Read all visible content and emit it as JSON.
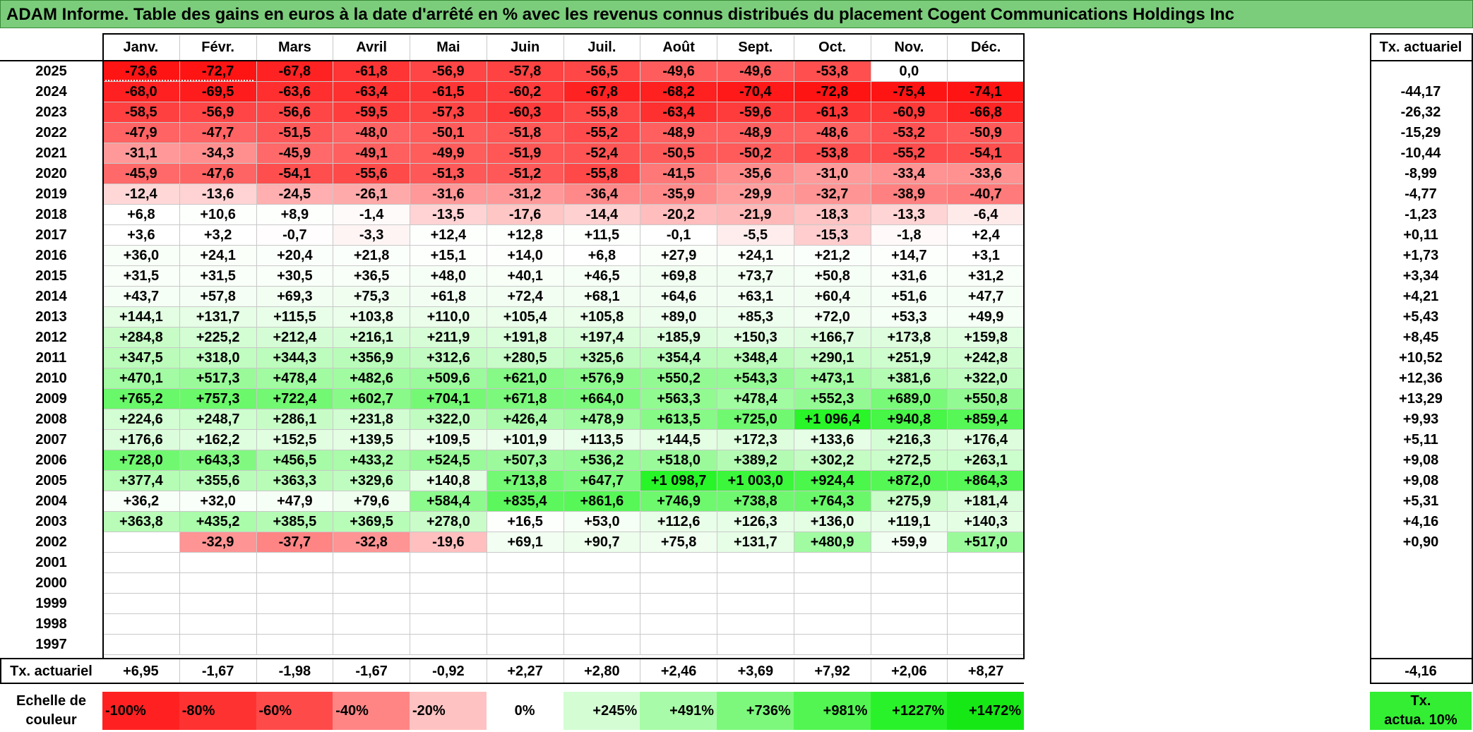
{
  "title": "ADAM Informe. Table des gains en euros à la date d'arrêté en % avec les revenus connus distribués du placement Cogent Communications Holdings Inc",
  "months": [
    "Janv.",
    "Févr.",
    "Mars",
    "Avril",
    "Mai",
    "Juin",
    "Juil.",
    "Août",
    "Sept.",
    "Oct.",
    "Nov.",
    "Déc."
  ],
  "tx_header": "Tx. actuariel",
  "rows": [
    {
      "year": "2025",
      "values": [
        "-73,6",
        "-72,7",
        "-67,8",
        "-61,8",
        "-56,9",
        "-57,8",
        "-56,5",
        "-49,6",
        "-49,6",
        "-53,8",
        "0,0",
        ""
      ],
      "tx": ""
    },
    {
      "year": "2024",
      "values": [
        "-68,0",
        "-69,5",
        "-63,6",
        "-63,4",
        "-61,5",
        "-60,2",
        "-67,8",
        "-68,2",
        "-70,4",
        "-72,8",
        "-75,4",
        "-74,1"
      ],
      "tx": "-44,17"
    },
    {
      "year": "2023",
      "values": [
        "-58,5",
        "-56,9",
        "-56,6",
        "-59,5",
        "-57,3",
        "-60,3",
        "-55,8",
        "-63,4",
        "-59,6",
        "-61,3",
        "-60,9",
        "-66,8"
      ],
      "tx": "-26,32"
    },
    {
      "year": "2022",
      "values": [
        "-47,9",
        "-47,7",
        "-51,5",
        "-48,0",
        "-50,1",
        "-51,8",
        "-55,2",
        "-48,9",
        "-48,9",
        "-48,6",
        "-53,2",
        "-50,9"
      ],
      "tx": "-15,29"
    },
    {
      "year": "2021",
      "values": [
        "-31,1",
        "-34,3",
        "-45,9",
        "-49,1",
        "-49,9",
        "-51,9",
        "-52,4",
        "-50,5",
        "-50,2",
        "-53,8",
        "-55,2",
        "-54,1"
      ],
      "tx": "-10,44"
    },
    {
      "year": "2020",
      "values": [
        "-45,9",
        "-47,6",
        "-54,1",
        "-55,6",
        "-51,3",
        "-51,2",
        "-55,8",
        "-41,5",
        "-35,6",
        "-31,0",
        "-33,4",
        "-33,6"
      ],
      "tx": "-8,99"
    },
    {
      "year": "2019",
      "values": [
        "-12,4",
        "-13,6",
        "-24,5",
        "-26,1",
        "-31,6",
        "-31,2",
        "-36,4",
        "-35,9",
        "-29,9",
        "-32,7",
        "-38,9",
        "-40,7"
      ],
      "tx": "-4,77"
    },
    {
      "year": "2018",
      "values": [
        "+6,8",
        "+10,6",
        "+8,9",
        "-1,4",
        "-13,5",
        "-17,6",
        "-14,4",
        "-20,2",
        "-21,9",
        "-18,3",
        "-13,3",
        "-6,4"
      ],
      "tx": "-1,23"
    },
    {
      "year": "2017",
      "values": [
        "+3,6",
        "+3,2",
        "-0,7",
        "-3,3",
        "+12,4",
        "+12,8",
        "+11,5",
        "-0,1",
        "-5,5",
        "-15,3",
        "-1,8",
        "+2,4"
      ],
      "tx": "+0,11"
    },
    {
      "year": "2016",
      "values": [
        "+36,0",
        "+24,1",
        "+20,4",
        "+21,8",
        "+15,1",
        "+14,0",
        "+6,8",
        "+27,9",
        "+24,1",
        "+21,2",
        "+14,7",
        "+3,1"
      ],
      "tx": "+1,73"
    },
    {
      "year": "2015",
      "values": [
        "+31,5",
        "+31,5",
        "+30,5",
        "+36,5",
        "+48,0",
        "+40,1",
        "+46,5",
        "+69,8",
        "+73,7",
        "+50,8",
        "+31,6",
        "+31,2"
      ],
      "tx": "+3,34"
    },
    {
      "year": "2014",
      "values": [
        "+43,7",
        "+57,8",
        "+69,3",
        "+75,3",
        "+61,8",
        "+72,4",
        "+68,1",
        "+64,6",
        "+63,1",
        "+60,4",
        "+51,6",
        "+47,7"
      ],
      "tx": "+4,21"
    },
    {
      "year": "2013",
      "values": [
        "+144,1",
        "+131,7",
        "+115,5",
        "+103,8",
        "+110,0",
        "+105,4",
        "+105,8",
        "+89,0",
        "+85,3",
        "+72,0",
        "+53,3",
        "+49,9"
      ],
      "tx": "+5,43"
    },
    {
      "year": "2012",
      "values": [
        "+284,8",
        "+225,2",
        "+212,4",
        "+216,1",
        "+211,9",
        "+191,8",
        "+197,4",
        "+185,9",
        "+150,3",
        "+166,7",
        "+173,8",
        "+159,8"
      ],
      "tx": "+8,45"
    },
    {
      "year": "2011",
      "values": [
        "+347,5",
        "+318,0",
        "+344,3",
        "+356,9",
        "+312,6",
        "+280,5",
        "+325,6",
        "+354,4",
        "+348,4",
        "+290,1",
        "+251,9",
        "+242,8"
      ],
      "tx": "+10,52"
    },
    {
      "year": "2010",
      "values": [
        "+470,1",
        "+517,3",
        "+478,4",
        "+482,6",
        "+509,6",
        "+621,0",
        "+576,9",
        "+550,2",
        "+543,3",
        "+473,1",
        "+381,6",
        "+322,0"
      ],
      "tx": "+12,36"
    },
    {
      "year": "2009",
      "values": [
        "+765,2",
        "+757,3",
        "+722,4",
        "+602,7",
        "+704,1",
        "+671,8",
        "+664,0",
        "+563,3",
        "+478,4",
        "+552,3",
        "+689,0",
        "+550,8"
      ],
      "tx": "+13,29"
    },
    {
      "year": "2008",
      "values": [
        "+224,6",
        "+248,7",
        "+286,1",
        "+231,8",
        "+322,0",
        "+426,4",
        "+478,9",
        "+613,5",
        "+725,0",
        "+1 096,4",
        "+940,8",
        "+859,4"
      ],
      "tx": "+9,93"
    },
    {
      "year": "2007",
      "values": [
        "+176,6",
        "+162,2",
        "+152,5",
        "+139,5",
        "+109,5",
        "+101,9",
        "+113,5",
        "+144,5",
        "+172,3",
        "+133,6",
        "+216,3",
        "+176,4"
      ],
      "tx": "+5,11"
    },
    {
      "year": "2006",
      "values": [
        "+728,0",
        "+643,3",
        "+456,5",
        "+433,2",
        "+524,5",
        "+507,3",
        "+536,2",
        "+518,0",
        "+389,2",
        "+302,2",
        "+272,5",
        "+263,1"
      ],
      "tx": "+9,08"
    },
    {
      "year": "2005",
      "values": [
        "+377,4",
        "+355,6",
        "+363,3",
        "+329,6",
        "+140,8",
        "+713,8",
        "+647,7",
        "+1 098,7",
        "+1 003,0",
        "+924,4",
        "+872,0",
        "+864,3"
      ],
      "tx": "+9,08"
    },
    {
      "year": "2004",
      "values": [
        "+36,2",
        "+32,0",
        "+47,9",
        "+79,6",
        "+584,4",
        "+835,4",
        "+861,6",
        "+746,9",
        "+738,8",
        "+764,3",
        "+275,9",
        "+181,4"
      ],
      "tx": "+5,31"
    },
    {
      "year": "2003",
      "values": [
        "+363,8",
        "+435,2",
        "+385,5",
        "+369,5",
        "+278,0",
        "+16,5",
        "+53,0",
        "+112,6",
        "+126,3",
        "+136,0",
        "+119,1",
        "+140,3"
      ],
      "tx": "+4,16"
    },
    {
      "year": "2002",
      "values": [
        "",
        "-32,9",
        "-37,7",
        "-32,8",
        "-19,6",
        "+69,1",
        "+90,7",
        "+75,8",
        "+131,7",
        "+480,9",
        "+59,9",
        "+517,0"
      ],
      "tx": "+0,90"
    },
    {
      "year": "2001",
      "values": [
        "",
        "",
        "",
        "",
        "",
        "",
        "",
        "",
        "",
        "",
        "",
        ""
      ],
      "tx": ""
    },
    {
      "year": "2000",
      "values": [
        "",
        "",
        "",
        "",
        "",
        "",
        "",
        "",
        "",
        "",
        "",
        ""
      ],
      "tx": ""
    },
    {
      "year": "1999",
      "values": [
        "",
        "",
        "",
        "",
        "",
        "",
        "",
        "",
        "",
        "",
        "",
        ""
      ],
      "tx": ""
    },
    {
      "year": "1998",
      "values": [
        "",
        "",
        "",
        "",
        "",
        "",
        "",
        "",
        "",
        "",
        "",
        ""
      ],
      "tx": ""
    },
    {
      "year": "1997",
      "values": [
        "",
        "",
        "",
        "",
        "",
        "",
        "",
        "",
        "",
        "",
        "",
        ""
      ],
      "tx": ""
    }
  ],
  "footer": {
    "label": "Tx. actuariel",
    "values": [
      "+6,95",
      "-1,67",
      "-1,98",
      "-1,67",
      "-0,92",
      "+2,27",
      "+2,80",
      "+2,46",
      "+3,69",
      "+7,92",
      "+2,06",
      "+8,27"
    ],
    "total": "-4,16"
  },
  "scale": {
    "label_line1": "Echelle de",
    "label_line2": "couleur",
    "items": [
      {
        "label": "-100%",
        "color": "#ff2121",
        "align": "left"
      },
      {
        "label": "-80%",
        "color": "#ff3232",
        "align": "left"
      },
      {
        "label": "-60%",
        "color": "#ff4a4a",
        "align": "left"
      },
      {
        "label": "-40%",
        "color": "#ff8585",
        "align": "left"
      },
      {
        "label": "-20%",
        "color": "#ffc2c2",
        "align": "left"
      },
      {
        "label": "0%",
        "color": "#ffffff",
        "align": "center"
      },
      {
        "label": "+245%",
        "color": "#d4fdd4",
        "align": "right"
      },
      {
        "label": "+491%",
        "color": "#a8fba8",
        "align": "right"
      },
      {
        "label": "+736%",
        "color": "#7df87d",
        "align": "right"
      },
      {
        "label": "+981%",
        "color": "#52f552",
        "align": "right"
      },
      {
        "label": "+1227%",
        "color": "#2af22a",
        "align": "right"
      },
      {
        "label": "+1472%",
        "color": "#16e816",
        "align": "right"
      }
    ],
    "legend_line1": "Tx.",
    "legend_line2": "actua. 10%",
    "legend_color": "#33ee33"
  }
}
